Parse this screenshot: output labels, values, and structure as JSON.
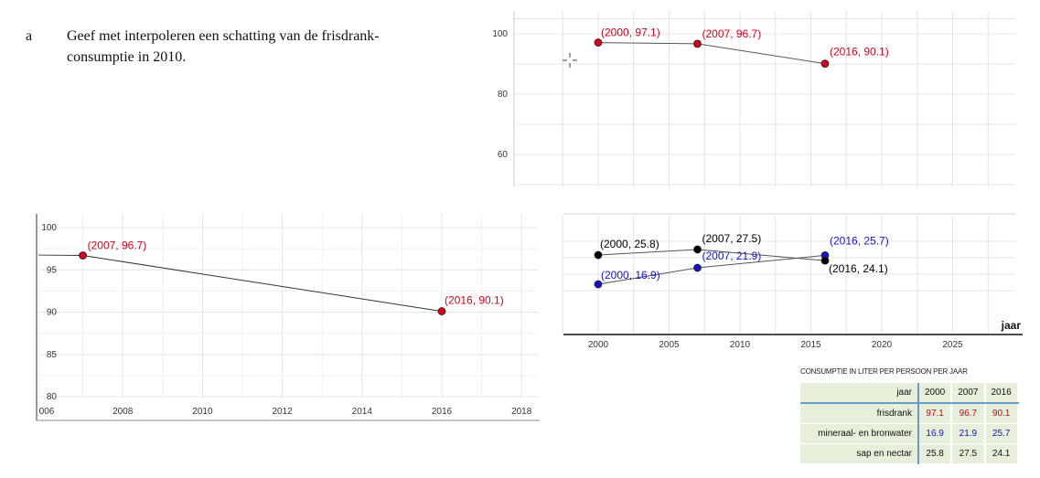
{
  "question": {
    "letter": "a",
    "text": "Geef met interpoleren een schatting van de frisdrank-consumptie in 2010."
  },
  "colors": {
    "frisdrank": "#d0021b",
    "mineraalwater": "#1414c8",
    "sap": "#000000",
    "grid": "#e4e4e4"
  },
  "chart_data": [
    {
      "type": "scatter",
      "xlabel": "jaar",
      "x_ticks": [
        "2000",
        "2005",
        "2010",
        "2015",
        "2020",
        "2025"
      ],
      "y_ticks": [
        "100",
        "80",
        "60"
      ],
      "xlim": [
        1997.5,
        2029
      ],
      "grid": true,
      "series": [
        {
          "name": "frisdrank",
          "points": [
            {
              "x": 2000,
              "y": 97.1,
              "label": "(2000, 97.1)"
            },
            {
              "x": 2007,
              "y": 96.7,
              "label": "(2007, 96.7)"
            },
            {
              "x": 2016,
              "y": 90.1,
              "label": "(2016, 90.1)"
            }
          ]
        },
        {
          "name": "mineraal- en bronwater",
          "points": [
            {
              "x": 2000,
              "y": 16.9,
              "label": "(2000, 16.9)"
            },
            {
              "x": 2007,
              "y": 21.9,
              "label": "(2007, 21.9)"
            },
            {
              "x": 2016,
              "y": 25.7,
              "label": "(2016, 25.7)"
            }
          ]
        },
        {
          "name": "sap en nectar",
          "points": [
            {
              "x": 2000,
              "y": 25.8,
              "label": "(2000, 25.8)"
            },
            {
              "x": 2007,
              "y": 27.5,
              "label": "(2007, 27.5)"
            },
            {
              "x": 2016,
              "y": 24.1,
              "label": "(2016, 24.1)"
            }
          ]
        }
      ]
    },
    {
      "type": "line",
      "x_ticks": [
        "006",
        "2008",
        "2010",
        "2012",
        "2014",
        "2016",
        "2018"
      ],
      "y_ticks": [
        "100",
        "95",
        "90",
        "85",
        "80"
      ],
      "xlim": [
        2006,
        2018.4
      ],
      "ylim": [
        79.5,
        101
      ],
      "grid": true,
      "series": [
        {
          "name": "frisdrank",
          "points": [
            {
              "x": 2007,
              "y": 96.7,
              "label": "(2007, 96.7)"
            },
            {
              "x": 2016,
              "y": 90.1,
              "label": "(2016, 90.1)"
            }
          ]
        }
      ]
    }
  ],
  "table": {
    "caption": "CONSUMPTIE IN LITER PER PERSOON PER JAAR",
    "header": [
      "jaar",
      "2000",
      "2007",
      "2016"
    ],
    "rows": [
      {
        "label": "frisdrank",
        "values": [
          "97.1",
          "96.7",
          "90.1"
        ],
        "color": "#d0021b"
      },
      {
        "label": "mineraal- en bronwater",
        "values": [
          "16.9",
          "21.9",
          "25.7"
        ],
        "color": "#1414c8"
      },
      {
        "label": "sap en nectar",
        "values": [
          "25.8",
          "27.5",
          "24.1"
        ],
        "color": "#111111"
      }
    ]
  }
}
